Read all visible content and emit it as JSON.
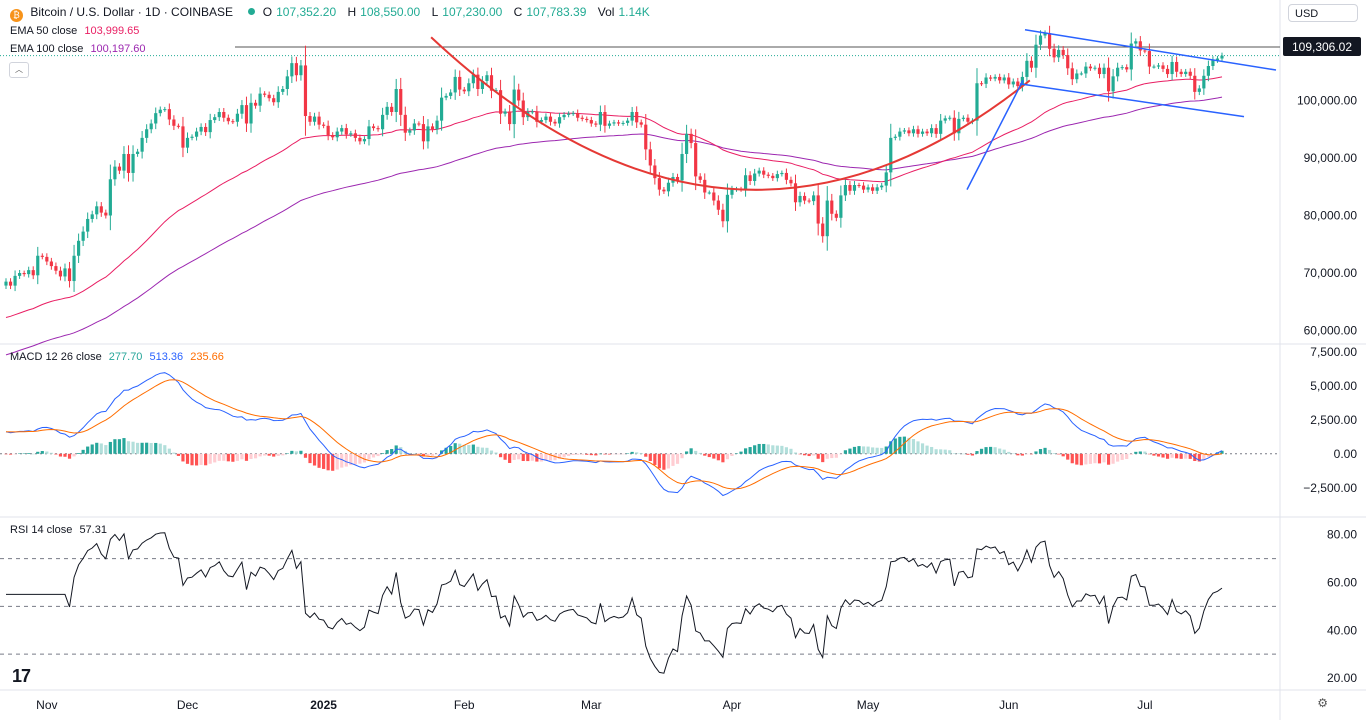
{
  "header": {
    "symbol": "Bitcoin / U.S. Dollar · 1D · COINBASE",
    "coin_glyph": "₿",
    "ohlc": [
      {
        "key": "O",
        "value": "107,352.20"
      },
      {
        "key": "H",
        "value": "108,550.00"
      },
      {
        "key": "L",
        "value": "107,230.00"
      },
      {
        "key": "C",
        "value": "107,783.39"
      },
      {
        "key": "Vol",
        "value": "1.14K"
      }
    ],
    "currency": "USD",
    "collapse_glyph": "︿"
  },
  "indicators": {
    "ema50": {
      "label": "EMA 50 close",
      "value": "103,999.65"
    },
    "ema100": {
      "label": "EMA 100 close",
      "value": "100,197.60"
    },
    "macd": {
      "label": "MACD 12 26 close",
      "hist": "277.70",
      "macd": "513.36",
      "signal": "235.66"
    },
    "rsi": {
      "label": "RSI 14 close",
      "value": "57.31"
    }
  },
  "branding": {
    "logo": "17",
    "settings_glyph": "⚙"
  },
  "colors": {
    "up": "#22ab94",
    "down": "#f23645",
    "ema50": "#e91e63",
    "ema100": "#9c27b0",
    "macd": "#2962ff",
    "signal": "#ff6d00",
    "pattern": "#e53935",
    "trend": "#2962ff"
  },
  "chart_data": {
    "type": "candlestick",
    "title": "Bitcoin / U.S. Dollar · 1D · COINBASE",
    "x_labels": [
      "Nov",
      "Dec",
      "2025",
      "Feb",
      "Mar",
      "Apr",
      "May",
      "Jun",
      "Jul"
    ],
    "price_axis": {
      "ticks": [
        "60,000.00",
        "70,000.00",
        "80,000.00",
        "90,000.00",
        "100,000.00"
      ],
      "ylim": [
        58000,
        114000
      ]
    },
    "price_label": "109,306.02",
    "resistance": 109306,
    "close_series": [
      68500,
      67800,
      69500,
      70000,
      69800,
      70500,
      69600,
      73000,
      72800,
      72000,
      71200,
      70400,
      69400,
      70800,
      68600,
      73000,
      75600,
      77200,
      79400,
      80200,
      81600,
      80500,
      80000,
      86300,
      88500,
      87800,
      90700,
      87400,
      90700,
      91100,
      93500,
      95000,
      96000,
      97800,
      98400,
      98500,
      96700,
      95600,
      95500,
      91800,
      93500,
      93700,
      94600,
      95400,
      94500,
      96600,
      97100,
      98000,
      97000,
      96400,
      96300,
      97700,
      99200,
      96000,
      99600,
      99100,
      101200,
      101000,
      100400,
      99700,
      101500,
      102000,
      104200,
      106500,
      104400,
      106100,
      97300,
      96300,
      97200,
      95800,
      95600,
      94000,
      93600,
      94600,
      95200,
      94100,
      94300,
      93500,
      92900,
      93300,
      95500,
      95200,
      95000,
      97500,
      98900,
      98000,
      102000,
      97500,
      94400,
      94800,
      96000,
      95900,
      92900,
      95500,
      95000,
      96500,
      100500,
      100800,
      101400,
      104100,
      101900,
      101600,
      103000,
      104500,
      102000,
      103400,
      104400,
      101700,
      101800,
      97700,
      98100,
      95900,
      101900,
      100000,
      97100,
      98000,
      98100,
      96300,
      96600,
      97200,
      96300,
      96000,
      97100,
      97500,
      97700,
      97800,
      97000,
      96800,
      96600,
      96000,
      95800,
      98000,
      95600,
      96000,
      96200,
      96000,
      96100,
      96500,
      98000,
      96200,
      95800,
      91500,
      88700,
      86500,
      84500,
      84200,
      85700,
      86700,
      86100,
      90700,
      94200,
      92600,
      86800,
      86200,
      84000,
      84000,
      82600,
      81000,
      79000,
      83600,
      84500,
      84600,
      84500,
      87000,
      86000,
      87300,
      87800,
      87100,
      86900,
      86500,
      87200,
      87400,
      86200,
      85600,
      82300,
      83400,
      82600,
      82500,
      83500,
      78600,
      76400,
      82600,
      80300,
      79600,
      83500,
      85300,
      84300,
      85300,
      85200,
      84500,
      84900,
      84300,
      84900,
      85200,
      87500,
      93500,
      93700,
      94600,
      94800,
      94300,
      95000,
      94200,
      94600,
      94300,
      95200,
      94200,
      96500,
      96900,
      97000,
      94300,
      96800,
      97000,
      96300,
      96500,
      103000,
      102900,
      104000,
      103800,
      104100,
      103500,
      104000,
      102800,
      103300,
      102500,
      104100,
      106900,
      105700,
      109700,
      111300,
      111700,
      109000,
      107500,
      108800,
      107900,
      105600,
      103700,
      104700,
      104700,
      105900,
      105600,
      105700,
      104600,
      105700,
      101600,
      104200,
      105700,
      105800,
      105400,
      109900,
      110300,
      108700,
      108600,
      105900,
      105900,
      106100,
      105500,
      104600,
      106700,
      105000,
      104600,
      105000,
      104300,
      101500,
      102100,
      104300,
      106000,
      107000,
      107300,
      107800
    ],
    "rsi_axis": {
      "ticks": [
        "20.00",
        "40.00",
        "60.00",
        "80.00"
      ],
      "ylim": [
        15,
        87
      ],
      "overbought": 70,
      "middle": 50,
      "oversold": 30
    },
    "macd_axis": {
      "ticks": [
        "−2,500.00",
        "0.00",
        "2,500.00",
        "5,000.00",
        "7,500.00"
      ],
      "ylim": [
        -4500,
        8000
      ]
    },
    "annotations": [
      "cup-and-handle pattern",
      "descending channel",
      "uptrend line"
    ]
  }
}
